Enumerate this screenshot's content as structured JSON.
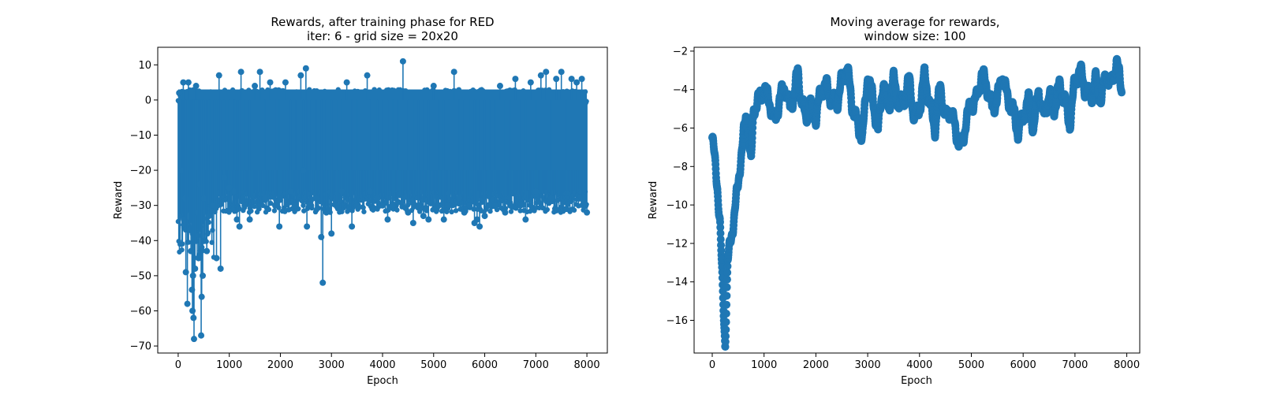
{
  "chart_data": [
    {
      "type": "line",
      "style": "stem",
      "title": "Rewards, after training phase for RED",
      "subtitle": "iter: 6 - grid size = 20x20",
      "xlabel": "Epoch",
      "ylabel": "Reward",
      "xlim": [
        -400,
        8400
      ],
      "ylim": [
        -72,
        15
      ],
      "xticks": [
        0,
        1000,
        2000,
        3000,
        4000,
        5000,
        6000,
        7000,
        8000
      ],
      "yticks": [
        10,
        0,
        -10,
        -20,
        -30,
        -40,
        -50,
        -60,
        -70
      ],
      "grid": false,
      "color": "#1f77b4",
      "x_range": [
        0,
        8000
      ],
      "series": [
        {
          "values_note_points": [
            [
              20,
              2
            ],
            [
              60,
              -12
            ],
            [
              80,
              -20
            ],
            [
              100,
              5
            ],
            [
              110,
              -34
            ],
            [
              140,
              -28
            ],
            [
              150,
              -49
            ],
            [
              180,
              -58
            ],
            [
              200,
              5
            ],
            [
              220,
              -37
            ],
            [
              250,
              -43
            ],
            [
              270,
              -54
            ],
            [
              280,
              -60
            ],
            [
              290,
              -50
            ],
            [
              300,
              -62
            ],
            [
              310,
              -68
            ],
            [
              330,
              -48
            ],
            [
              350,
              4
            ],
            [
              380,
              -32
            ],
            [
              400,
              -45
            ],
            [
              420,
              -24
            ],
            [
              450,
              -67
            ],
            [
              460,
              -56
            ],
            [
              480,
              -50
            ],
            [
              500,
              -28
            ],
            [
              560,
              -43
            ],
            [
              600,
              -33
            ],
            [
              620,
              -12
            ],
            [
              700,
              -30
            ],
            [
              750,
              -45
            ],
            [
              800,
              7
            ],
            [
              830,
              -48
            ],
            [
              900,
              -22
            ],
            [
              1000,
              -25
            ],
            [
              1100,
              -26
            ],
            [
              1150,
              -34
            ],
            [
              1200,
              -36
            ],
            [
              1230,
              8
            ],
            [
              1300,
              -30
            ],
            [
              1400,
              -34
            ],
            [
              1500,
              4
            ],
            [
              1600,
              8
            ],
            [
              1700,
              -28
            ],
            [
              1800,
              5
            ],
            [
              1900,
              -30
            ],
            [
              1980,
              -36
            ],
            [
              2100,
              5
            ],
            [
              2200,
              -26
            ],
            [
              2300,
              -30
            ],
            [
              2400,
              7
            ],
            [
              2450,
              -20
            ],
            [
              2500,
              9
            ],
            [
              2520,
              -36
            ],
            [
              2600,
              -30
            ],
            [
              2700,
              -28
            ],
            [
              2800,
              -39
            ],
            [
              2830,
              -52
            ],
            [
              2900,
              -32
            ],
            [
              3000,
              -38
            ],
            [
              3100,
              -30
            ],
            [
              3200,
              -26
            ],
            [
              3300,
              5
            ],
            [
              3400,
              -36
            ],
            [
              3500,
              -30
            ],
            [
              3700,
              7
            ],
            [
              3750,
              -26
            ],
            [
              3900,
              -28
            ],
            [
              4000,
              -30
            ],
            [
              4100,
              -34
            ],
            [
              4200,
              -30
            ],
            [
              4300,
              -29
            ],
            [
              4400,
              11
            ],
            [
              4500,
              -32
            ],
            [
              4600,
              -35
            ],
            [
              4700,
              -30
            ],
            [
              4800,
              -33
            ],
            [
              4900,
              -34
            ],
            [
              5000,
              4
            ],
            [
              5100,
              -30
            ],
            [
              5200,
              -34
            ],
            [
              5300,
              -30
            ],
            [
              5400,
              8
            ],
            [
              5500,
              -28
            ],
            [
              5600,
              -32
            ],
            [
              5700,
              -30
            ],
            [
              5800,
              -35
            ],
            [
              5850,
              -34
            ],
            [
              5900,
              -36
            ],
            [
              6000,
              -33
            ],
            [
              6100,
              -30
            ],
            [
              6200,
              -30
            ],
            [
              6300,
              4
            ],
            [
              6400,
              -32
            ],
            [
              6500,
              -30
            ],
            [
              6600,
              6
            ],
            [
              6700,
              -30
            ],
            [
              6800,
              -34
            ],
            [
              6900,
              5
            ],
            [
              7000,
              -26
            ],
            [
              7100,
              7
            ],
            [
              7200,
              8
            ],
            [
              7300,
              -28
            ],
            [
              7400,
              6
            ],
            [
              7500,
              8
            ],
            [
              7600,
              -31
            ],
            [
              7700,
              6
            ],
            [
              7800,
              5
            ],
            [
              7900,
              6
            ],
            [
              8000,
              -32
            ]
          ]
        }
      ]
    },
    {
      "type": "scatter",
      "title": "Moving average for rewards,",
      "subtitle": "window size: 100",
      "xlabel": "Epoch",
      "ylabel": "Reward",
      "xlim": [
        -350,
        8250
      ],
      "ylim": [
        -17.7,
        -1.8
      ],
      "xticks": [
        0,
        1000,
        2000,
        3000,
        4000,
        5000,
        6000,
        7000,
        8000
      ],
      "yticks": [
        -2,
        -4,
        -6,
        -8,
        -10,
        -12,
        -14,
        -16
      ],
      "grid": false,
      "color": "#1f77b4",
      "series": [
        {
          "x": [
            0,
            100,
            150,
            200,
            250,
            300,
            400,
            500,
            550,
            600,
            650,
            700,
            750,
            800,
            900,
            1000,
            1100,
            1200,
            1300,
            1400,
            1500,
            1600,
            1650,
            1700,
            1800,
            1900,
            2000,
            2100,
            2200,
            2300,
            2400,
            2500,
            2600,
            2700,
            2800,
            2900,
            3000,
            3100,
            3200,
            3300,
            3400,
            3500,
            3600,
            3700,
            3800,
            3900,
            4000,
            4100,
            4200,
            4300,
            4400,
            4500,
            4600,
            4700,
            4800,
            4850,
            4900,
            5000,
            5100,
            5200,
            5300,
            5400,
            5500,
            5600,
            5700,
            5800,
            5900,
            6000,
            6100,
            6200,
            6300,
            6400,
            6500,
            6600,
            6700,
            6800,
            6900,
            7000,
            7100,
            7200,
            7300,
            7400,
            7500,
            7600,
            7700,
            7800,
            7900
          ],
          "y": [
            -6.5,
            -9,
            -11,
            -14.5,
            -17.2,
            -13,
            -11,
            -9,
            -7.5,
            -6.5,
            -5.5,
            -6,
            -8,
            -5,
            -4.5,
            -4,
            -4.5,
            -5.8,
            -4.5,
            -3.8,
            -5,
            -4,
            -3,
            -4.2,
            -5.5,
            -4.8,
            -5.5,
            -4,
            -3.8,
            -4.5,
            -4.8,
            -3.5,
            -2.8,
            -4.8,
            -5.8,
            -6.5,
            -3.2,
            -4.5,
            -6.2,
            -3.5,
            -5,
            -3.5,
            -4.8,
            -4.5,
            -3.5,
            -5.5,
            -5,
            -3.2,
            -4.8,
            -6,
            -3.8,
            -5.5,
            -5,
            -6.2,
            -7,
            -6.5,
            -5.5,
            -4.8,
            -4.5,
            -3.2,
            -3.8,
            -5,
            -4.5,
            -3.2,
            -4.5,
            -5,
            -6.2,
            -5.5,
            -4.5,
            -6,
            -4,
            -5.5,
            -4.2,
            -5,
            -3.8,
            -4.5,
            -5.8,
            -3.5,
            -3,
            -4,
            -4.5,
            -3.5,
            -4.5,
            -3.2,
            -3.8,
            -2.5,
            -4
          ]
        }
      ]
    }
  ]
}
